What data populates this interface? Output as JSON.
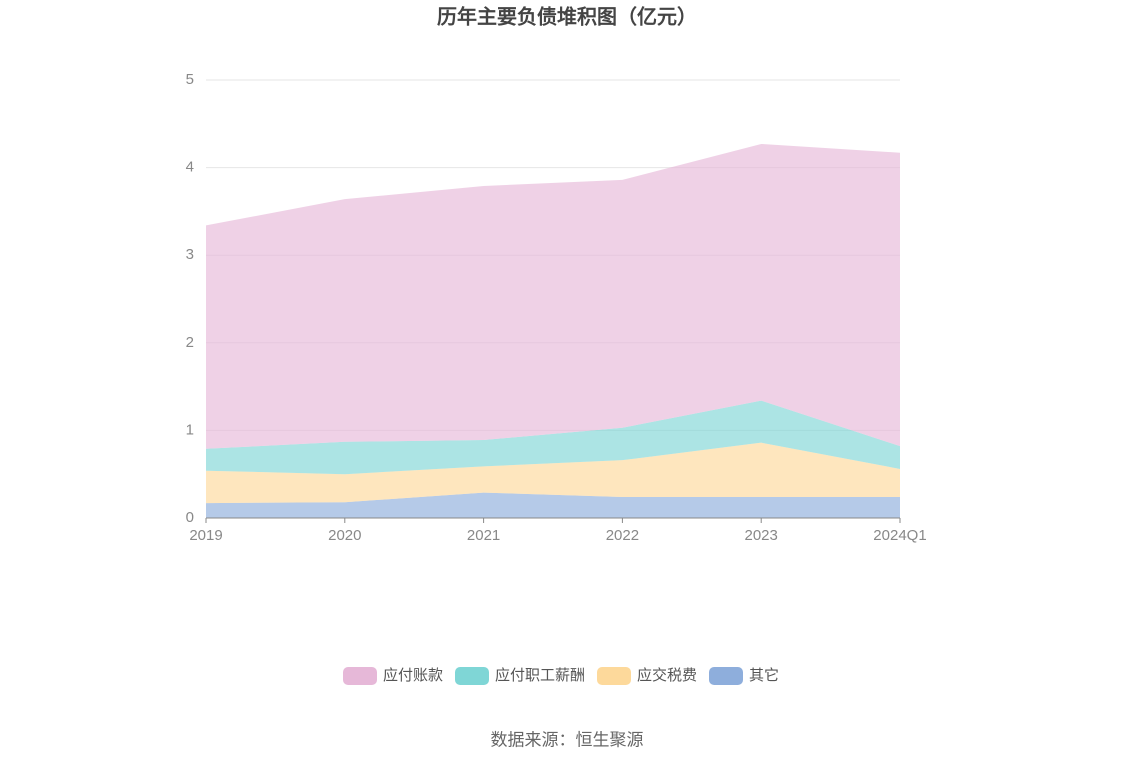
{
  "chart_data": {
    "type": "stacked-area",
    "title": "历年主要负债堆积图（亿元）",
    "categories": [
      "2019",
      "2020",
      "2021",
      "2022",
      "2023",
      "2024Q1"
    ],
    "series": [
      {
        "name": "应付账款",
        "color": "#e6b8d8",
        "values": [
          2.55,
          2.77,
          2.9,
          2.83,
          2.93,
          3.35
        ]
      },
      {
        "name": "应付职工薪酬",
        "color": "#7fd6d6",
        "values": [
          0.25,
          0.37,
          0.3,
          0.37,
          0.48,
          0.26
        ]
      },
      {
        "name": "应交税费",
        "color": "#fdd99b",
        "values": [
          0.37,
          0.32,
          0.3,
          0.42,
          0.62,
          0.32
        ]
      },
      {
        "name": "其它",
        "color": "#8eaedc",
        "values": [
          0.17,
          0.18,
          0.29,
          0.24,
          0.24,
          0.24
        ]
      }
    ],
    "ylim": [
      0,
      5
    ],
    "yticks": [
      0,
      1,
      2,
      3,
      4,
      5
    ],
    "grid": true,
    "legend": "bottom",
    "source": "数据来源：恒生聚源"
  }
}
